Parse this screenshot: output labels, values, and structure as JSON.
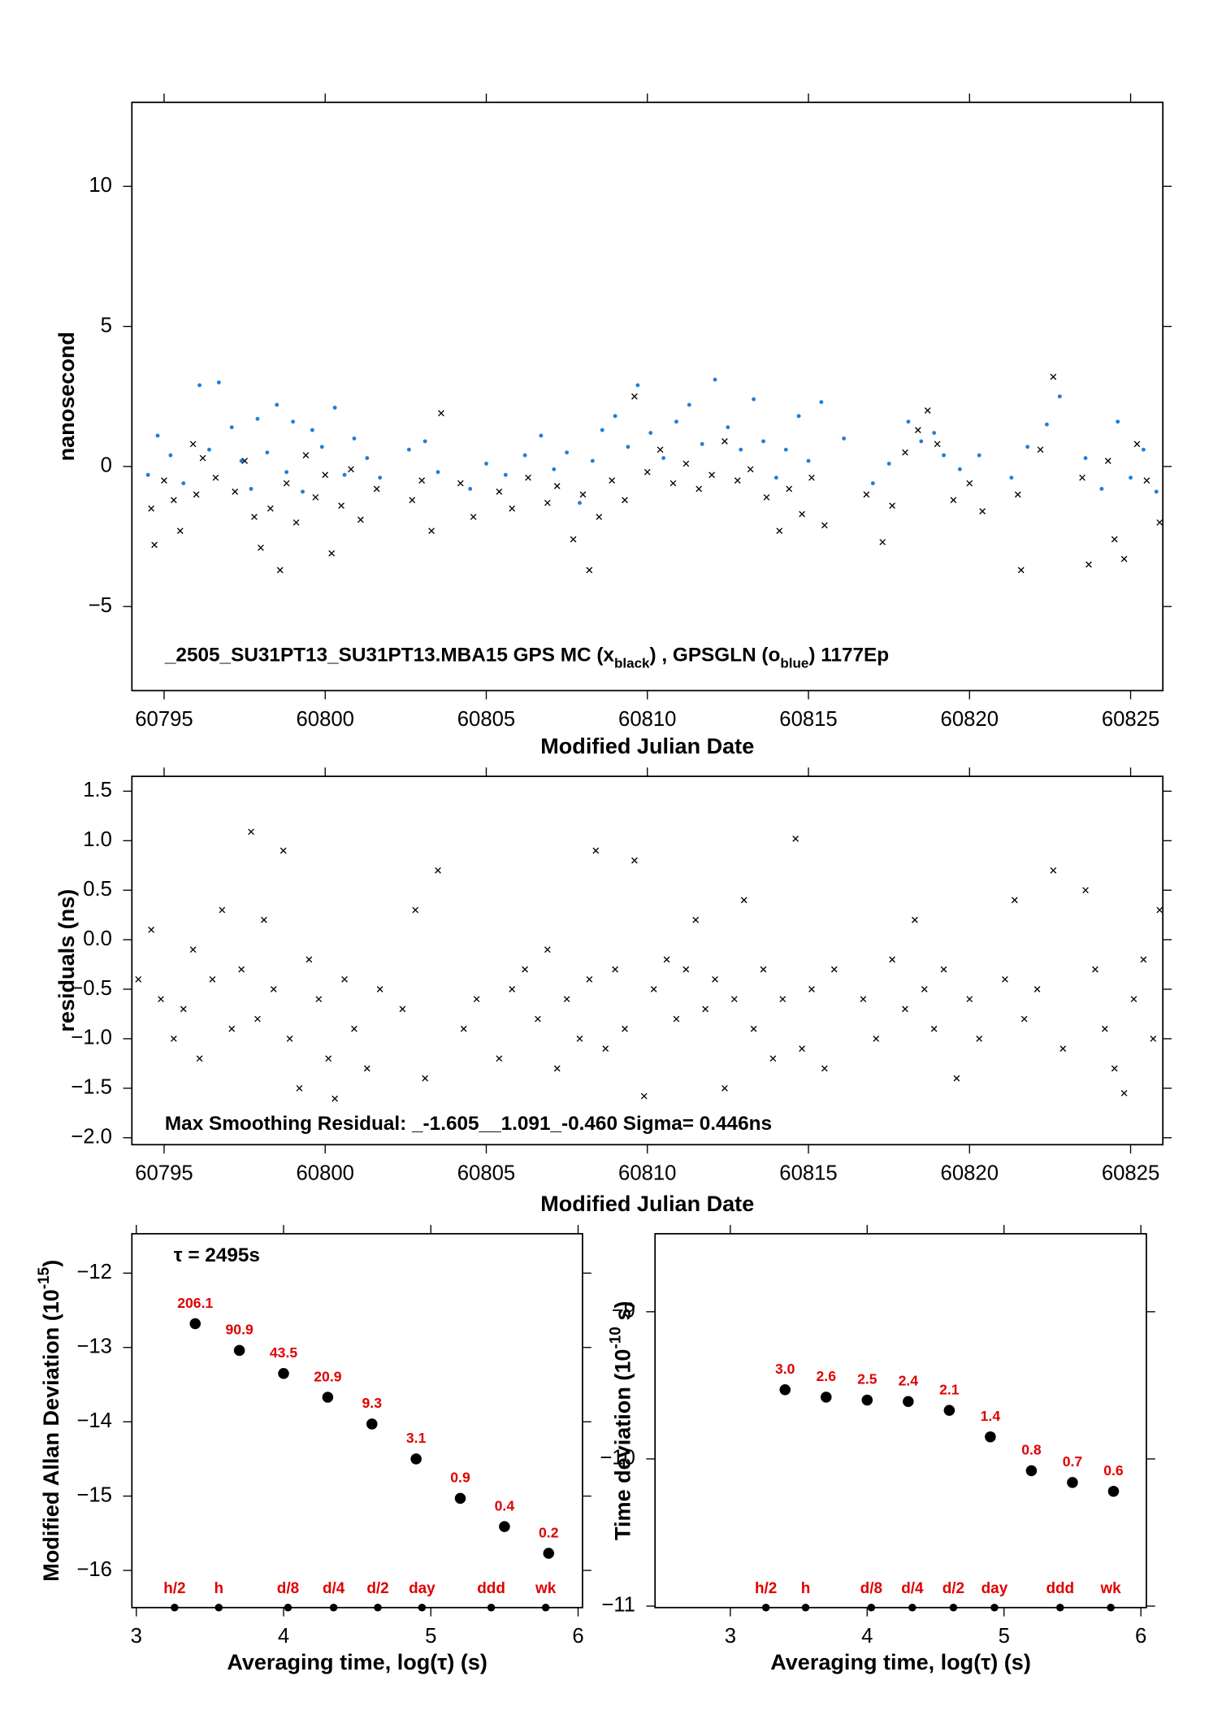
{
  "chart_data": [
    {
      "type": "scatter",
      "ylabel": "nanosecond",
      "xlabel": "Modified Julian Date",
      "annotation": [
        {
          "text": "_2505_SU31PT13_SU31PT13.MBA15     GPS MC (x"
        },
        {
          "sub": "black"
        },
        {
          "text": ") ,   GPSGLN (o"
        },
        {
          "sub": "blue"
        },
        {
          "text": ")  1177Ep"
        }
      ],
      "xlim": [
        60794,
        60826
      ],
      "ylim": [
        -8,
        13
      ],
      "xticks": [
        60795,
        60800,
        60805,
        60810,
        60815,
        60820,
        60825
      ],
      "yticks": [
        {
          "value": -5,
          "label": "−5"
        },
        0,
        5,
        10
      ],
      "series": [
        {
          "color": "#000000",
          "marker": "x",
          "x": [
            60794.6,
            60794.7,
            60795.0,
            60795.3,
            60795.5,
            60795.9,
            60796.0,
            60796.2,
            60796.6,
            60797.2,
            60797.5,
            60797.8,
            60798.0,
            60798.3,
            60798.6,
            60798.8,
            60799.1,
            60799.4,
            60799.7,
            60800.0,
            60800.2,
            60800.5,
            60800.8,
            60801.1,
            60801.6,
            60802.7,
            60803.0,
            60803.3,
            60803.6,
            60804.2,
            60804.6,
            60805.4,
            60805.8,
            60806.3,
            60806.9,
            60807.2,
            60807.7,
            60808.0,
            60808.2,
            60808.5,
            60808.9,
            60809.3,
            60809.6,
            60810.0,
            60810.4,
            60810.8,
            60811.2,
            60811.6,
            60812.0,
            60812.4,
            60812.8,
            60813.2,
            60813.7,
            60814.1,
            60814.4,
            60814.8,
            60815.1,
            60815.5,
            60816.8,
            60817.3,
            60817.6,
            60818.0,
            60818.4,
            60818.7,
            60819.0,
            60819.5,
            60820.0,
            60820.4,
            60821.5,
            60821.6,
            60822.2,
            60822.6,
            60823.5,
            60823.7,
            60824.3,
            60824.5,
            60824.8,
            60825.2,
            60825.5,
            60825.9
          ],
          "values": [
            -1.5,
            -2.8,
            -0.5,
            -1.2,
            -2.3,
            0.8,
            -1.0,
            0.3,
            -0.4,
            -0.9,
            0.2,
            -1.8,
            -2.9,
            -1.5,
            -3.7,
            -0.6,
            -2.0,
            0.4,
            -1.1,
            -0.3,
            -3.1,
            -1.4,
            -0.1,
            -1.9,
            -0.8,
            -1.2,
            -0.5,
            -2.3,
            1.9,
            -0.6,
            -1.8,
            -0.9,
            -1.5,
            -0.4,
            -1.3,
            -0.7,
            -2.6,
            -1.0,
            -3.7,
            -1.8,
            -0.5,
            -1.2,
            2.5,
            -0.2,
            0.6,
            -0.6,
            0.1,
            -0.8,
            -0.3,
            0.9,
            -0.5,
            -0.1,
            -1.1,
            -2.3,
            -0.8,
            -1.7,
            -0.4,
            -2.1,
            -1.0,
            -2.7,
            -1.4,
            0.5,
            1.3,
            2.0,
            0.8,
            -1.2,
            -0.6,
            -1.6,
            -1.0,
            -3.7,
            0.6,
            3.2,
            -0.4,
            -3.5,
            0.2,
            -2.6,
            -3.3,
            0.8,
            -0.5,
            -2.0
          ]
        },
        {
          "color": "#1f7fd6",
          "marker": "o",
          "x": [
            60794.5,
            60794.8,
            60795.2,
            60795.6,
            60796.1,
            60796.4,
            60796.7,
            60797.1,
            60797.4,
            60797.7,
            60797.9,
            60798.2,
            60798.5,
            60798.8,
            60799.0,
            60799.3,
            60799.6,
            60799.9,
            60800.3,
            60800.6,
            60800.9,
            60801.3,
            60801.7,
            60802.6,
            60803.1,
            60803.5,
            60804.5,
            60805.0,
            60805.6,
            60806.2,
            60806.7,
            60807.1,
            60807.5,
            60807.9,
            60808.3,
            60808.6,
            60809.0,
            60809.4,
            60809.7,
            60810.1,
            60810.5,
            60810.9,
            60811.3,
            60811.7,
            60812.1,
            60812.5,
            60812.9,
            60813.3,
            60813.6,
            60814.0,
            60814.3,
            60814.7,
            60815.0,
            60815.4,
            60816.1,
            60817.0,
            60817.5,
            60818.1,
            60818.5,
            60818.9,
            60819.2,
            60819.7,
            60820.3,
            60821.3,
            60821.8,
            60822.4,
            60822.8,
            60823.6,
            60824.1,
            60824.6,
            60825.0,
            60825.4,
            60825.8
          ],
          "values": [
            -0.3,
            1.1,
            0.4,
            -0.6,
            2.9,
            0.6,
            3.0,
            1.4,
            0.2,
            -0.8,
            1.7,
            0.5,
            2.2,
            -0.2,
            1.6,
            -0.9,
            1.3,
            0.7,
            2.1,
            -0.3,
            1.0,
            0.3,
            -0.4,
            0.6,
            0.9,
            -0.2,
            -0.8,
            0.1,
            -0.3,
            0.4,
            1.1,
            -0.1,
            0.5,
            -1.3,
            0.2,
            1.3,
            1.8,
            0.7,
            2.9,
            1.2,
            0.3,
            1.6,
            2.2,
            0.8,
            3.1,
            1.4,
            0.6,
            2.4,
            0.9,
            -0.4,
            0.6,
            1.8,
            0.2,
            2.3,
            1.0,
            -0.6,
            0.1,
            1.6,
            0.9,
            1.2,
            0.4,
            -0.1,
            0.4,
            -0.4,
            0.7,
            1.5,
            2.5,
            0.3,
            -0.8,
            1.6,
            -0.4,
            0.6,
            -0.9
          ]
        }
      ]
    },
    {
      "type": "scatter",
      "ylabel": "residuals (ns)",
      "xlabel": "Modified Julian Date",
      "annotation": [
        {
          "text": "Max Smoothing Residual: _-1.605__1.091_-0.460  Sigma= 0.446ns"
        }
      ],
      "xlim": [
        60794,
        60826
      ],
      "ylim": [
        -2.07,
        1.65
      ],
      "xticks": [
        60795,
        60800,
        60805,
        60810,
        60815,
        60820,
        60825
      ],
      "yticks": [
        {
          "value": -2,
          "label": "−2.0"
        },
        {
          "value": -1.5,
          "label": "−1.5"
        },
        {
          "value": -1,
          "label": "−1.0"
        },
        {
          "value": -0.5,
          "label": "−0.5"
        },
        {
          "value": 0,
          "label": "0.0"
        },
        0.5,
        {
          "value": 1,
          "label": "1.0"
        },
        1.5
      ],
      "series": [
        {
          "color": "#000000",
          "marker": "x",
          "x": [
            60794.2,
            60794.6,
            60794.9,
            60795.3,
            60795.6,
            60795.9,
            60796.1,
            60796.5,
            60796.8,
            60797.1,
            60797.4,
            60797.7,
            60797.9,
            60798.1,
            60798.4,
            60798.7,
            60798.9,
            60799.2,
            60799.5,
            60799.8,
            60800.1,
            60800.3,
            60800.6,
            60800.9,
            60801.3,
            60801.7,
            60802.4,
            60802.8,
            60803.1,
            60803.5,
            60804.3,
            60804.7,
            60805.4,
            60805.8,
            60806.2,
            60806.6,
            60806.9,
            60807.2,
            60807.5,
            60807.9,
            60808.2,
            60808.4,
            60808.7,
            60809.0,
            60809.3,
            60809.6,
            60809.9,
            60810.2,
            60810.6,
            60810.9,
            60811.2,
            60811.5,
            60811.8,
            60812.1,
            60812.4,
            60812.7,
            60813.0,
            60813.3,
            60813.6,
            60813.9,
            60814.2,
            60814.6,
            60814.8,
            60815.1,
            60815.5,
            60815.8,
            60816.7,
            60817.1,
            60817.6,
            60818.0,
            60818.3,
            60818.6,
            60818.9,
            60819.2,
            60819.6,
            60820.0,
            60820.3,
            60821.1,
            60821.4,
            60821.7,
            60822.1,
            60822.6,
            60822.9,
            60823.6,
            60823.9,
            60824.2,
            60824.5,
            60824.8,
            60825.1,
            60825.4,
            60825.7,
            60825.9
          ],
          "values": [
            -0.4,
            0.1,
            -0.6,
            -1.0,
            -0.7,
            -0.1,
            -1.2,
            -0.4,
            0.3,
            -0.9,
            -0.3,
            1.09,
            -0.8,
            0.2,
            -0.5,
            0.9,
            -1.0,
            -1.5,
            -0.2,
            -0.6,
            -1.2,
            -1.605,
            -0.4,
            -0.9,
            -1.3,
            -0.5,
            -0.7,
            0.3,
            -1.4,
            0.7,
            -0.9,
            -0.6,
            -1.2,
            -0.5,
            -0.3,
            -0.8,
            -0.1,
            -1.3,
            -0.6,
            -1.0,
            -0.4,
            0.9,
            -1.1,
            -0.3,
            -0.9,
            0.8,
            -1.58,
            -0.5,
            -0.2,
            -0.8,
            -0.3,
            0.2,
            -0.7,
            -0.4,
            -1.5,
            -0.6,
            0.4,
            -0.9,
            -0.3,
            -1.2,
            -0.6,
            1.02,
            -1.1,
            -0.5,
            -1.3,
            -0.3,
            -0.6,
            -1.0,
            -0.2,
            -0.7,
            0.2,
            -0.5,
            -0.9,
            -0.3,
            -1.4,
            -0.6,
            -1.0,
            -0.4,
            0.4,
            -0.8,
            -0.5,
            0.7,
            -1.1,
            0.5,
            -0.3,
            -0.9,
            -1.3,
            -1.55,
            -0.6,
            -0.2,
            -1.0,
            0.3
          ]
        }
      ]
    },
    {
      "type": "scatter",
      "ylabel": [
        {
          "text": "Modified Allan Deviation (10"
        },
        {
          "sup": "-15"
        },
        {
          "text": ")"
        }
      ],
      "xlabel": "Averaging time, log(τ) (s)",
      "annotation": [
        {
          "text": "τ = 2495s"
        }
      ],
      "xlim": [
        2.97,
        6.03
      ],
      "ylim": [
        -16.5,
        -11.47
      ],
      "xticks": [
        3,
        4,
        5,
        6
      ],
      "yticks": [
        {
          "value": -16,
          "label": "−16"
        },
        {
          "value": -15,
          "label": "−15"
        },
        {
          "value": -14,
          "label": "−14"
        },
        {
          "value": -13,
          "label": "−13"
        },
        {
          "value": -12,
          "label": "−12"
        }
      ],
      "series": [
        {
          "color": "#000000",
          "marker": "dot",
          "x": [
            3.4,
            3.7,
            4.0,
            4.3,
            4.6,
            4.9,
            5.2,
            5.5,
            5.8
          ],
          "values": [
            -12.68,
            -13.04,
            -13.35,
            -13.67,
            -14.03,
            -14.5,
            -15.03,
            -15.41,
            -15.77
          ],
          "point_labels": [
            "206.1",
            "90.9",
            "43.5",
            "20.9",
            "9.3",
            "3.1",
            "0.9",
            "0.4",
            "0.2"
          ]
        }
      ],
      "label_color": "#e00000",
      "markers": {
        "x": [
          3.26,
          3.56,
          4.03,
          4.34,
          4.64,
          4.94,
          5.41,
          5.78
        ],
        "labels": [
          "h/2",
          "h",
          "d/8",
          "d/4",
          "d/2",
          "day",
          "ddd",
          "wk"
        ]
      }
    },
    {
      "type": "scatter",
      "ylabel": [
        {
          "text": "Time deviation (10"
        },
        {
          "sup": "-10"
        },
        {
          "text": " s)"
        }
      ],
      "xlabel": "Averaging time, log(τ) (s)",
      "xlim": [
        2.45,
        6.04
      ],
      "ylim": [
        -11.01,
        -8.47
      ],
      "xticks": [
        3,
        4,
        5,
        6
      ],
      "yticks": [
        {
          "value": -11,
          "label": "−11"
        },
        {
          "value": -10,
          "label": "−10"
        },
        {
          "value": -9,
          "label": "−9"
        }
      ],
      "series": [
        {
          "color": "#000000",
          "marker": "dot",
          "x": [
            3.4,
            3.7,
            4.0,
            4.3,
            4.6,
            4.9,
            5.2,
            5.5,
            5.8
          ],
          "values": [
            -9.53,
            -9.58,
            -9.6,
            -9.61,
            -9.67,
            -9.85,
            -10.08,
            -10.16,
            -10.22
          ],
          "point_labels": [
            "3.0",
            "2.6",
            "2.5",
            "2.4",
            "2.1",
            "1.4",
            "0.8",
            "0.7",
            "0.6"
          ]
        }
      ],
      "label_color": "#e00000",
      "markers": {
        "x": [
          3.26,
          3.55,
          4.03,
          4.33,
          4.63,
          4.93,
          5.41,
          5.78
        ],
        "labels": [
          "h/2",
          "h",
          "d/8",
          "d/4",
          "d/2",
          "day",
          "ddd",
          "wk"
        ]
      }
    }
  ]
}
